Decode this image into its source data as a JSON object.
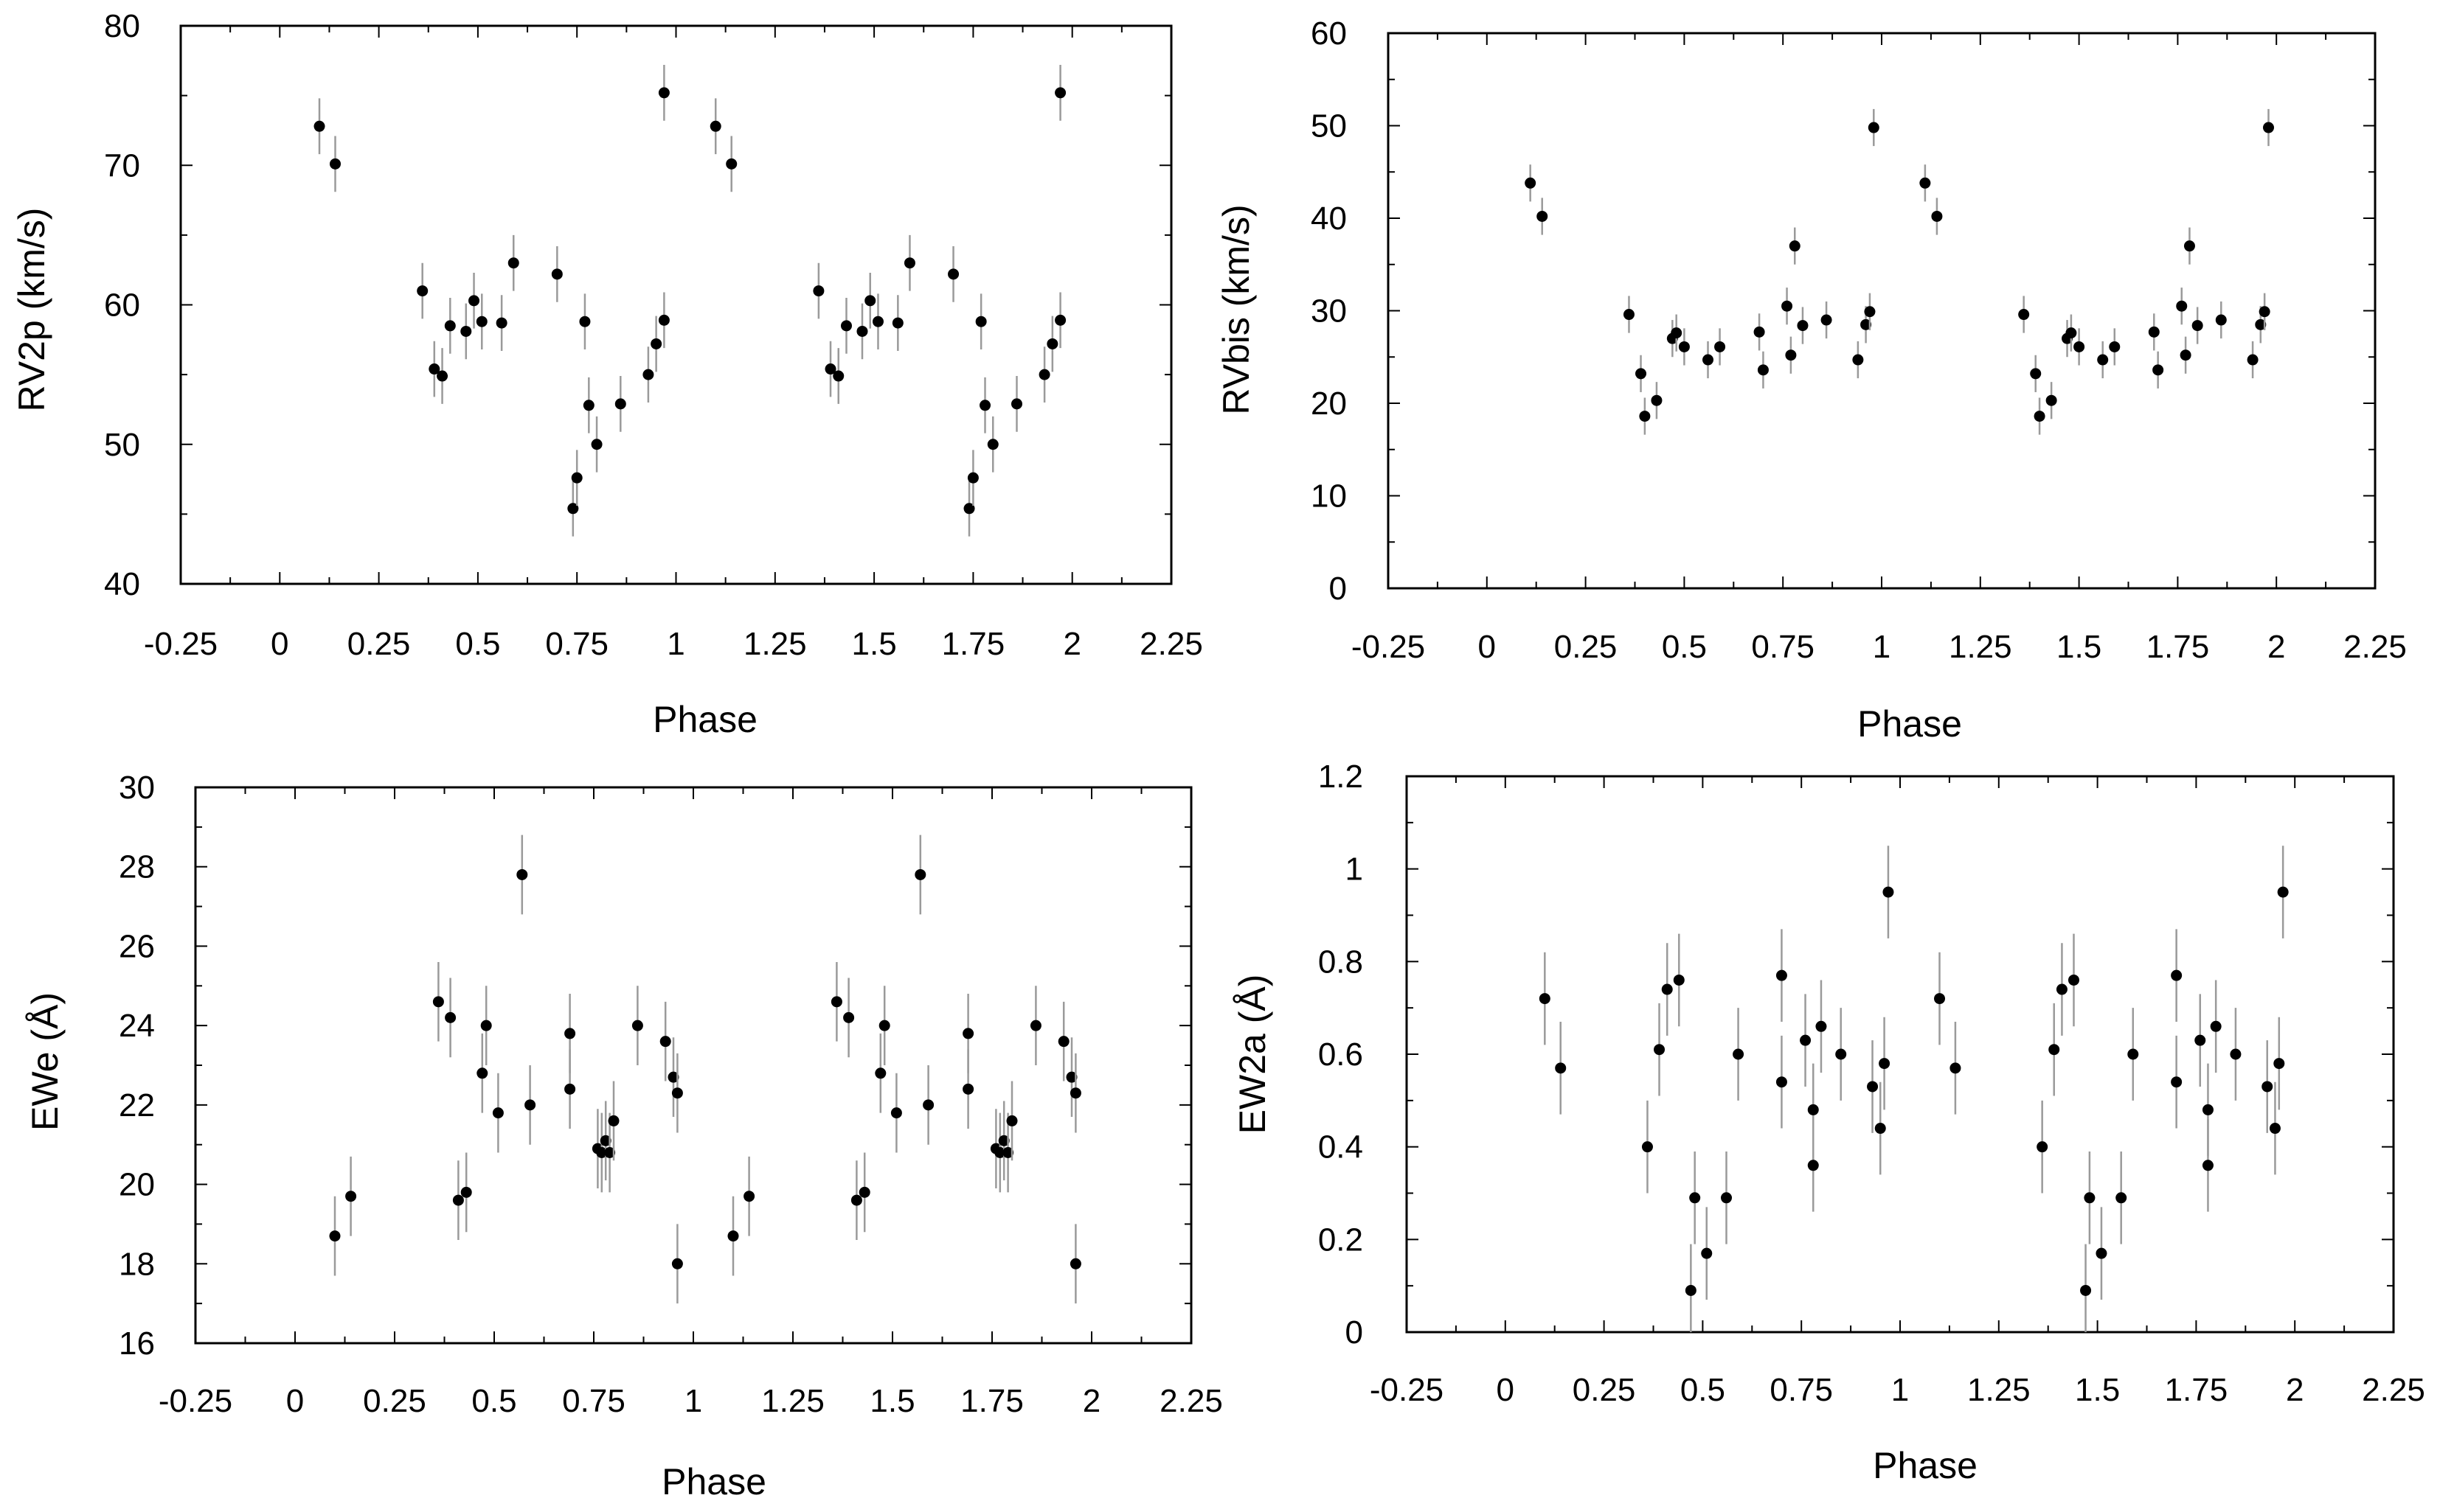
{
  "chart_data": [
    {
      "id": "rv2p",
      "type": "scatter",
      "xlabel": "Phase",
      "ylabel": "RV2p (km/s)",
      "xlim": [
        -0.25,
        2.25
      ],
      "ylim": [
        40,
        80
      ],
      "xticks": [
        -0.25,
        0,
        0.25,
        0.5,
        0.75,
        1,
        1.25,
        1.5,
        1.75,
        2,
        2.25
      ],
      "xtick_labels": [
        "-0.25",
        "0",
        "0.25",
        "0.5",
        "0.75",
        "1",
        "1.25",
        "1.5",
        "1.75",
        "2",
        "2.25"
      ],
      "yticks": [
        40,
        50,
        60,
        70,
        80
      ],
      "ytick_labels": [
        "40",
        "50",
        "60",
        "70",
        "80"
      ],
      "error": 2,
      "x": [
        0.1,
        0.14,
        0.36,
        0.39,
        0.41,
        0.43,
        0.47,
        0.49,
        0.51,
        0.56,
        0.59,
        0.7,
        0.74,
        0.75,
        0.77,
        0.78,
        0.8,
        0.86,
        0.93,
        0.95,
        0.97,
        0.97,
        1.1,
        1.14,
        1.36,
        1.39,
        1.41,
        1.43,
        1.47,
        1.49,
        1.51,
        1.56,
        1.59,
        1.7,
        1.74,
        1.75,
        1.77,
        1.78,
        1.8,
        1.86,
        1.93,
        1.95,
        1.97,
        1.97
      ],
      "y": [
        72.8,
        70.1,
        61,
        55.4,
        54.9,
        58.5,
        58.1,
        60.3,
        58.8,
        58.7,
        63,
        62.2,
        45.4,
        47.6,
        58.8,
        52.8,
        50,
        52.9,
        55,
        57.2,
        58.9,
        75.2,
        72.8,
        70.1,
        61,
        55.4,
        54.9,
        58.5,
        58.1,
        60.3,
        58.8,
        58.7,
        63,
        62.2,
        45.4,
        47.6,
        58.8,
        52.8,
        50,
        52.9,
        55,
        57.2,
        58.9,
        75.2
      ]
    },
    {
      "id": "rvbis",
      "type": "scatter",
      "xlabel": "Phase",
      "ylabel": "RVbis (km/s)",
      "xlim": [
        -0.25,
        2.25
      ],
      "ylim": [
        0,
        60
      ],
      "xticks": [
        -0.25,
        0,
        0.25,
        0.5,
        0.75,
        1,
        1.25,
        1.5,
        1.75,
        2,
        2.25
      ],
      "xtick_labels": [
        "-0.25",
        "0",
        "0.25",
        "0.5",
        "0.75",
        "1",
        "1.25",
        "1.5",
        "1.75",
        "2",
        "2.25"
      ],
      "yticks": [
        0,
        10,
        20,
        30,
        40,
        50,
        60
      ],
      "ytick_labels": [
        "0",
        "10",
        "20",
        "30",
        "40",
        "50",
        "60"
      ],
      "error": 2,
      "x": [
        0.11,
        0.14,
        0.36,
        0.39,
        0.4,
        0.43,
        0.47,
        0.48,
        0.5,
        0.56,
        0.59,
        0.69,
        0.7,
        0.76,
        0.77,
        0.78,
        0.8,
        0.86,
        0.94,
        0.96,
        0.97,
        0.98,
        1.11,
        1.14,
        1.36,
        1.39,
        1.4,
        1.43,
        1.47,
        1.48,
        1.5,
        1.56,
        1.59,
        1.69,
        1.7,
        1.76,
        1.77,
        1.78,
        1.8,
        1.86,
        1.94,
        1.96,
        1.97,
        1.98
      ],
      "y": [
        43.8,
        40.2,
        29.6,
        23.2,
        18.6,
        20.3,
        27,
        27.6,
        26.1,
        24.7,
        26.1,
        27.7,
        23.6,
        30.5,
        25.2,
        37,
        28.4,
        29,
        24.7,
        28.5,
        29.9,
        49.8,
        43.8,
        40.2,
        29.6,
        23.2,
        18.6,
        20.3,
        27,
        27.6,
        26.1,
        24.7,
        26.1,
        27.7,
        23.6,
        30.5,
        25.2,
        37,
        28.4,
        29,
        24.7,
        28.5,
        29.9,
        49.8
      ]
    },
    {
      "id": "ewe",
      "type": "scatter",
      "xlabel": "Phase",
      "ylabel": "EWe (Å)",
      "xlim": [
        -0.25,
        2.25
      ],
      "ylim": [
        16,
        30
      ],
      "xticks": [
        -0.25,
        0,
        0.25,
        0.5,
        0.75,
        1,
        1.25,
        1.5,
        1.75,
        2,
        2.25
      ],
      "xtick_labels": [
        "-0.25",
        "0",
        "0.25",
        "0.5",
        "0.75",
        "1",
        "1.25",
        "1.5",
        "1.75",
        "2",
        "2.25"
      ],
      "yticks": [
        16,
        18,
        20,
        22,
        24,
        26,
        28,
        30
      ],
      "ytick_labels": [
        "16",
        "18",
        "20",
        "22",
        "24",
        "26",
        "28",
        "30"
      ],
      "error": 1,
      "x": [
        0.1,
        0.14,
        0.36,
        0.39,
        0.41,
        0.43,
        0.47,
        0.48,
        0.51,
        0.57,
        0.59,
        0.69,
        0.69,
        0.76,
        0.77,
        0.78,
        0.79,
        0.8,
        0.86,
        0.93,
        0.95,
        0.96,
        0.96,
        1.1,
        1.14,
        1.36,
        1.39,
        1.41,
        1.43,
        1.47,
        1.48,
        1.51,
        1.57,
        1.59,
        1.69,
        1.69,
        1.76,
        1.77,
        1.78,
        1.79,
        1.8,
        1.86,
        1.93,
        1.95,
        1.96,
        1.96
      ],
      "y": [
        18.7,
        19.7,
        24.6,
        24.2,
        19.6,
        19.8,
        22.8,
        24,
        21.8,
        27.8,
        22,
        23.8,
        22.4,
        20.9,
        20.8,
        21.1,
        20.8,
        21.6,
        24,
        23.6,
        22.7,
        22.3,
        18,
        18.7,
        19.7,
        24.6,
        24.2,
        19.6,
        19.8,
        22.8,
        24,
        21.8,
        27.8,
        22,
        23.8,
        22.4,
        20.9,
        20.8,
        21.1,
        20.8,
        21.6,
        24,
        23.6,
        22.7,
        22.3,
        18
      ]
    },
    {
      "id": "ew2a",
      "type": "scatter",
      "xlabel": "Phase",
      "ylabel": "EW2a (Å)",
      "xlim": [
        -0.25,
        2.25
      ],
      "ylim": [
        0,
        1.2
      ],
      "xticks": [
        -0.25,
        0,
        0.25,
        0.5,
        0.75,
        1,
        1.25,
        1.5,
        1.75,
        2,
        2.25
      ],
      "xtick_labels": [
        "-0.25",
        "0",
        "0.25",
        "0.5",
        "0.75",
        "1",
        "1.25",
        "1.5",
        "1.75",
        "2",
        "2.25"
      ],
      "yticks": [
        0,
        0.2,
        0.4,
        0.6,
        0.8,
        1,
        1.2
      ],
      "ytick_labels": [
        "0",
        "0.2",
        "0.4",
        "0.6",
        "0.8",
        "1",
        "1.2"
      ],
      "error": 0.1,
      "x": [
        0.1,
        0.14,
        0.36,
        0.39,
        0.41,
        0.44,
        0.47,
        0.48,
        0.51,
        0.56,
        0.59,
        0.7,
        0.7,
        0.76,
        0.78,
        0.78,
        0.8,
        0.85,
        0.93,
        0.95,
        0.96,
        0.97,
        1.1,
        1.14,
        1.36,
        1.39,
        1.41,
        1.44,
        1.47,
        1.48,
        1.51,
        1.56,
        1.59,
        1.7,
        1.7,
        1.76,
        1.78,
        1.78,
        1.8,
        1.85,
        1.93,
        1.95,
        1.96,
        1.97
      ],
      "y": [
        0.72,
        0.57,
        0.4,
        0.61,
        0.74,
        0.76,
        0.09,
        0.29,
        0.17,
        0.29,
        0.6,
        0.77,
        0.54,
        0.63,
        0.48,
        0.36,
        0.66,
        0.6,
        0.53,
        0.44,
        0.58,
        0.95,
        0.72,
        0.57,
        0.4,
        0.61,
        0.74,
        0.76,
        0.09,
        0.29,
        0.17,
        0.29,
        0.6,
        0.77,
        0.54,
        0.63,
        0.48,
        0.36,
        0.66,
        0.6,
        0.53,
        0.44,
        0.58,
        0.95
      ]
    }
  ]
}
